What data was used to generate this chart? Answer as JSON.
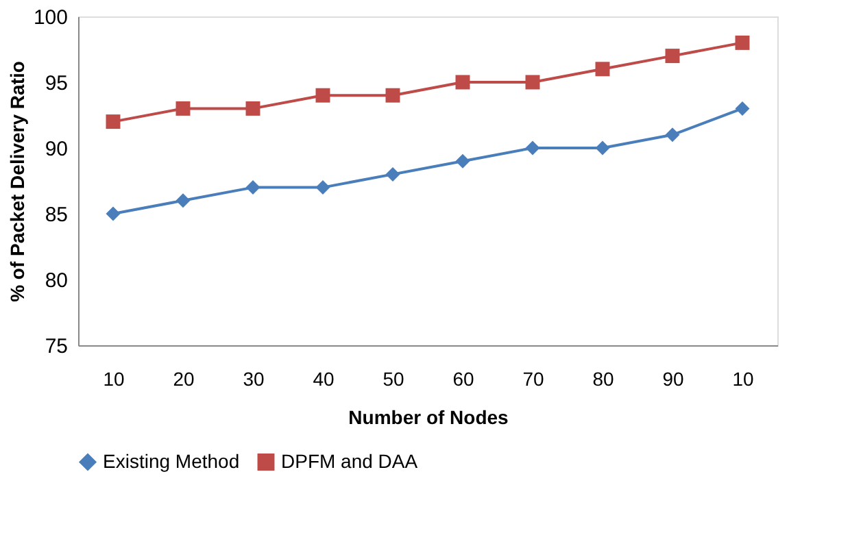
{
  "chart_data": {
    "type": "line",
    "xlabel": "Number of Nodes",
    "ylabel": "% of Packet Delivery Ratio",
    "categories": [
      "10",
      "20",
      "30",
      "40",
      "50",
      "60",
      "70",
      "80",
      "90",
      "10"
    ],
    "series": [
      {
        "name": "Existing Method",
        "color": "#4a7ebb",
        "marker": "diamond",
        "values": [
          85,
          86,
          87,
          87,
          88,
          89,
          90,
          90,
          91,
          93
        ]
      },
      {
        "name": "DPFM and DAA",
        "color": "#be4b48",
        "marker": "square",
        "values": [
          92,
          93,
          93,
          94,
          94,
          95,
          95,
          96,
          97,
          98
        ]
      }
    ],
    "ylim": [
      75,
      100
    ],
    "yticks": [
      75,
      80,
      85,
      90,
      95,
      100
    ],
    "grid": false,
    "legend": "bottom",
    "line_style": "solid"
  }
}
